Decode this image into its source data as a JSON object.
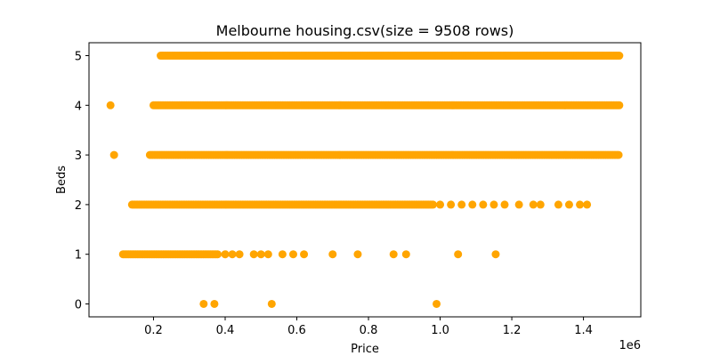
{
  "chart_data": {
    "type": "scatter",
    "title": "Melbourne housing.csv(size = 9508 rows)",
    "xlabel": "Price",
    "ylabel": "Beds",
    "x_offset_label": "1e6",
    "x_scale": 1000000,
    "xlim": [
      0.02,
      1.56
    ],
    "ylim": [
      -0.26,
      5.26
    ],
    "x_ticks": [
      0.2,
      0.4,
      0.6,
      0.8,
      1.0,
      1.2,
      1.4
    ],
    "x_tick_labels": [
      "0.2",
      "0.4",
      "0.6",
      "0.8",
      "1.0",
      "1.2",
      "1.4"
    ],
    "y_ticks": [
      0,
      1,
      2,
      3,
      4,
      5
    ],
    "y_tick_labels": [
      "0",
      "1",
      "2",
      "3",
      "4",
      "5"
    ],
    "grid": false,
    "marker_color": "#FFA500",
    "series": [
      {
        "points_by_beds": [
          {
            "beds": 0,
            "prices": [
              0.34,
              0.37,
              0.53,
              0.99
            ]
          },
          {
            "beds": 1,
            "ranges": [
              [
                0.115,
                0.38
              ]
            ],
            "prices": [
              0.4,
              0.42,
              0.44,
              0.48,
              0.5,
              0.52,
              0.56,
              0.59,
              0.62,
              0.7,
              0.77,
              0.87,
              0.905,
              1.05,
              1.155
            ]
          },
          {
            "beds": 2,
            "ranges": [
              [
                0.14,
                0.98
              ]
            ],
            "prices": [
              1.0,
              1.03,
              1.06,
              1.09,
              1.12,
              1.15,
              1.18,
              1.22,
              1.26,
              1.28,
              1.33,
              1.36,
              1.39,
              1.41
            ]
          },
          {
            "beds": 3,
            "ranges": [
              [
                0.19,
                1.5
              ]
            ],
            "prices": [
              0.09
            ]
          },
          {
            "beds": 4,
            "ranges": [
              [
                0.2,
                1.5
              ]
            ],
            "prices": [
              0.08
            ]
          },
          {
            "beds": 5,
            "ranges": [
              [
                0.22,
                1.5
              ]
            ],
            "prices": [
              0.225,
              0.32,
              0.33,
              0.345,
              0.36
            ]
          }
        ]
      }
    ]
  }
}
